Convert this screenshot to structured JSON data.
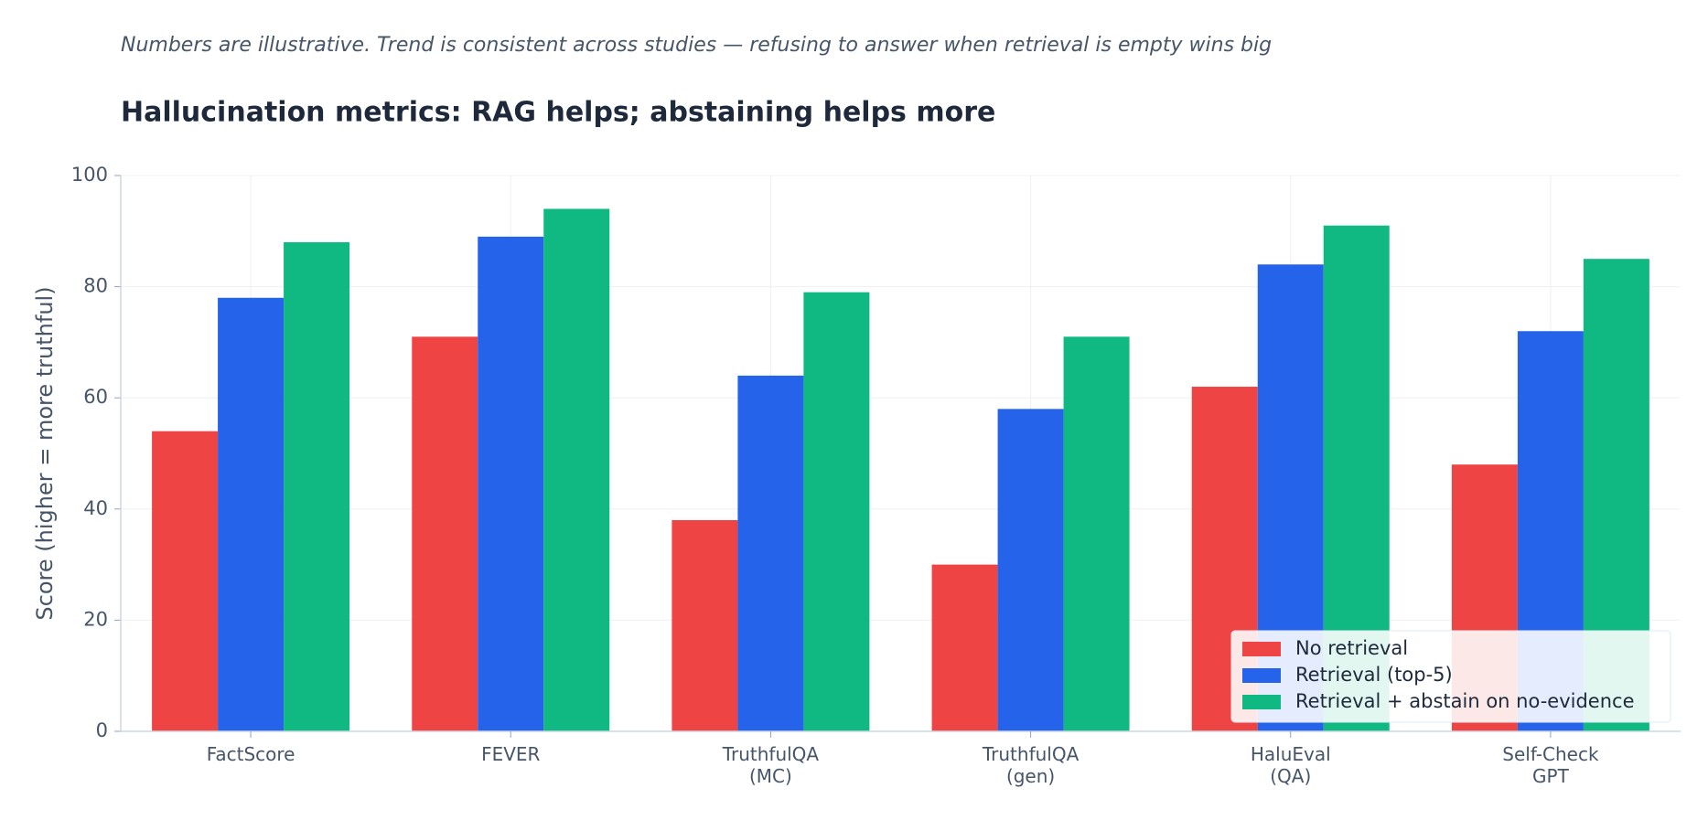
{
  "chart_data": {
    "type": "bar",
    "subtitle": "Numbers are illustrative. Trend is consistent across studies — refusing to answer when retrieval is empty wins big",
    "title": "Hallucination metrics: RAG helps; abstaining helps more",
    "y_label": "Score (higher = more truthful)",
    "categories": [
      "FactScore",
      "FEVER",
      "TruthfulQA\n(MC)",
      "TruthfulQA\n(gen)",
      "HaluEval\n(QA)",
      "Self-Check\nGPT"
    ],
    "series": [
      {
        "name": "No retrieval",
        "color": "#ef4444",
        "values": [
          54,
          71,
          38,
          30,
          62,
          48
        ]
      },
      {
        "name": "Retrieval (top-5)",
        "color": "#2563eb",
        "values": [
          78,
          89,
          64,
          58,
          84,
          72
        ]
      },
      {
        "name": "Retrieval + abstain on no-evidence",
        "color": "#10b981",
        "values": [
          88,
          94,
          79,
          71,
          91,
          85
        ]
      }
    ],
    "ylim": [
      0,
      100
    ],
    "yticks": [
      0,
      20,
      40,
      60,
      80,
      100
    ],
    "grid": true,
    "legend": "lower right"
  }
}
